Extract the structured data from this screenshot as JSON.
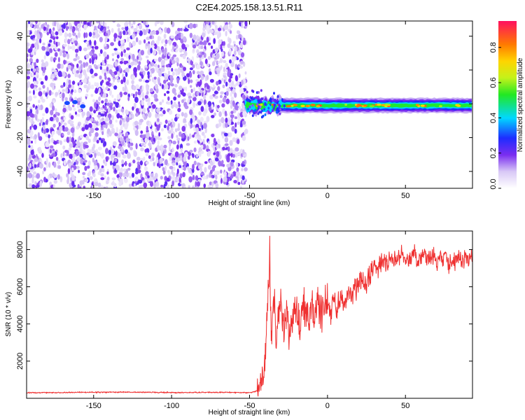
{
  "title": "C2E4.2025.158.13.51.R11",
  "chart_data": [
    {
      "type": "heatmap",
      "xlabel": "Height of straight line (km)",
      "ylabel": "Frequency (Hz)",
      "xlim": [
        -193,
        93
      ],
      "ylim": [
        -50,
        49
      ],
      "x_ticks": [
        -150,
        -100,
        -50,
        0,
        50
      ],
      "y_ticks": [
        -40,
        -20,
        0,
        20,
        40
      ],
      "noise_region": {
        "x_start": -193,
        "x_end": -52,
        "level": 0.1
      },
      "signal_band": {
        "x_start": -53,
        "x_end": 93,
        "center_freq": -1,
        "peak_amplitude": 0.95
      },
      "colorbar": {
        "label": "Normalized spectral amplitude",
        "range": [
          0.0,
          0.95
        ],
        "ticks": [
          0.0,
          0.2,
          0.4,
          0.6,
          0.8
        ],
        "tick_labels": [
          "0.0",
          "0.2",
          "0.4",
          "0.6",
          "0.8"
        ]
      },
      "grid": false
    },
    {
      "type": "line",
      "xlabel": "Height of straight line (km)",
      "ylabel": "SNR (10 * v/v)",
      "xlim": [
        -193,
        93
      ],
      "ylim": [
        0,
        9000
      ],
      "x_ticks": [
        -150,
        -100,
        -50,
        0,
        50
      ],
      "y_ticks": [
        2000,
        4000,
        6000,
        8000
      ],
      "color": "#ef3030",
      "x": [
        -193,
        -160,
        -130,
        -100,
        -70,
        -50,
        -45,
        -42,
        -40,
        -38,
        -37,
        -36,
        -35,
        -34,
        -33,
        -32,
        -30,
        -28,
        -26,
        -24,
        -22,
        -20,
        -18,
        -16,
        -14,
        -12,
        -10,
        -8,
        -6,
        -4,
        -2,
        0,
        2,
        4,
        6,
        8,
        10,
        12,
        14,
        16,
        18,
        20,
        22,
        24,
        26,
        28,
        30,
        32,
        34,
        36,
        38,
        40,
        42,
        44,
        46,
        48,
        50,
        52,
        54,
        56,
        58,
        60,
        62,
        64,
        66,
        68,
        70,
        72,
        74,
        76,
        78,
        80,
        82,
        84,
        86,
        88,
        90,
        93
      ],
      "values": [
        300,
        320,
        330,
        310,
        320,
        300,
        400,
        900,
        2200,
        6200,
        7800,
        3000,
        4200,
        5800,
        2500,
        3800,
        5200,
        3400,
        4800,
        3000,
        4500,
        5100,
        3700,
        4800,
        5000,
        4200,
        5300,
        4000,
        5100,
        4500,
        5000,
        5200,
        4600,
        5100,
        4900,
        5300,
        5200,
        5500,
        5800,
        5400,
        5900,
        6100,
        6400,
        5900,
        6600,
        6900,
        7100,
        6800,
        7300,
        7500,
        7200,
        7600,
        7400,
        7700,
        7500,
        7800,
        7600,
        7400,
        7700,
        7900,
        7300,
        7600,
        7800,
        7400,
        7500,
        7700,
        7200,
        7600,
        7400,
        7800,
        7100,
        7500,
        7300,
        7700,
        7200,
        7600,
        7300,
        7700
      ]
    }
  ]
}
